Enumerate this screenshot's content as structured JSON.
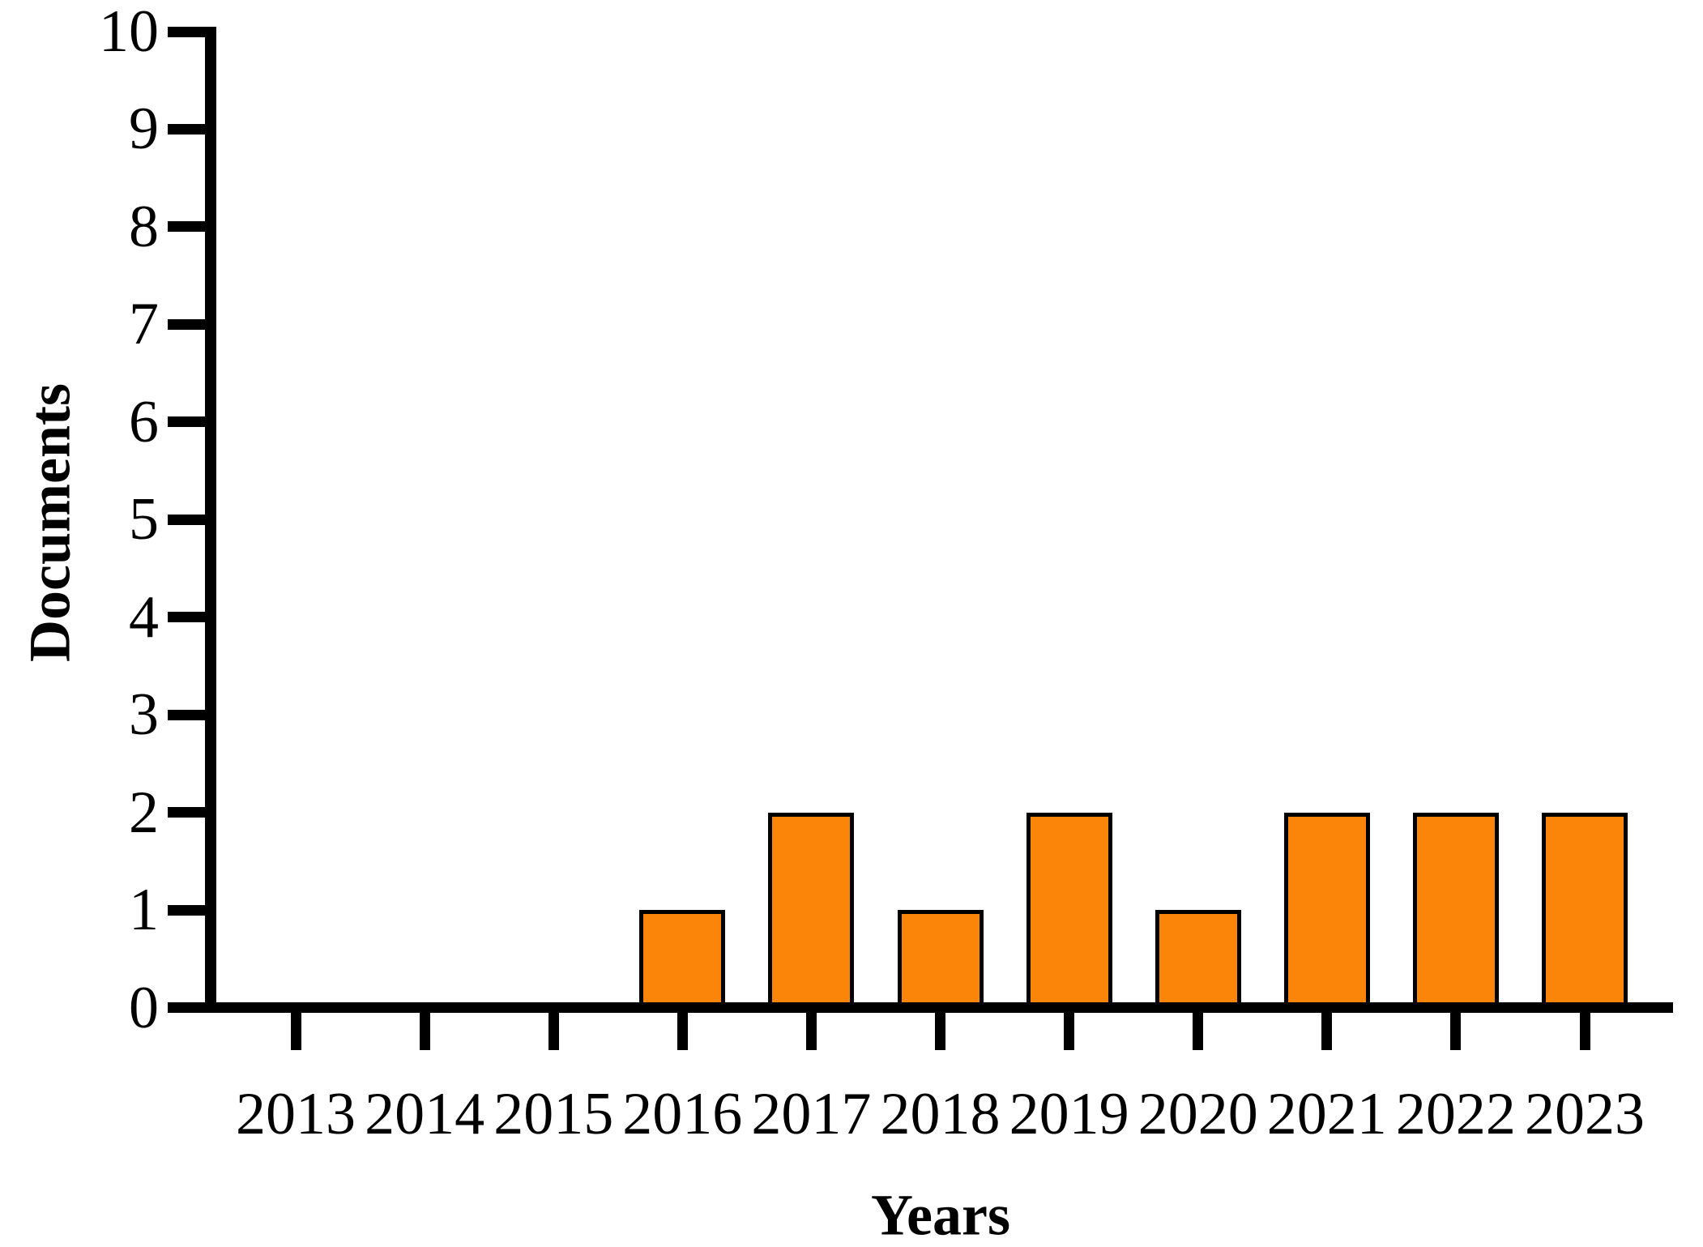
{
  "chart_data": {
    "type": "bar",
    "categories": [
      "2013",
      "2014",
      "2015",
      "2016",
      "2017",
      "2018",
      "2019",
      "2020",
      "2021",
      "2022",
      "2023"
    ],
    "values": [
      0,
      0,
      0,
      1,
      2,
      1,
      2,
      1,
      2,
      2,
      2
    ],
    "xlabel": "Years",
    "ylabel": "Documents",
    "ylim": [
      0,
      10
    ],
    "yticks": [
      0,
      1,
      2,
      3,
      4,
      5,
      6,
      7,
      8,
      9,
      10
    ],
    "grid": false,
    "legend_position": "none",
    "colors": {
      "bar_fill": "#FB8508",
      "bar_border": "#000000",
      "axis": "#000000",
      "text": "#000000",
      "background": "#FFFFFF"
    }
  }
}
